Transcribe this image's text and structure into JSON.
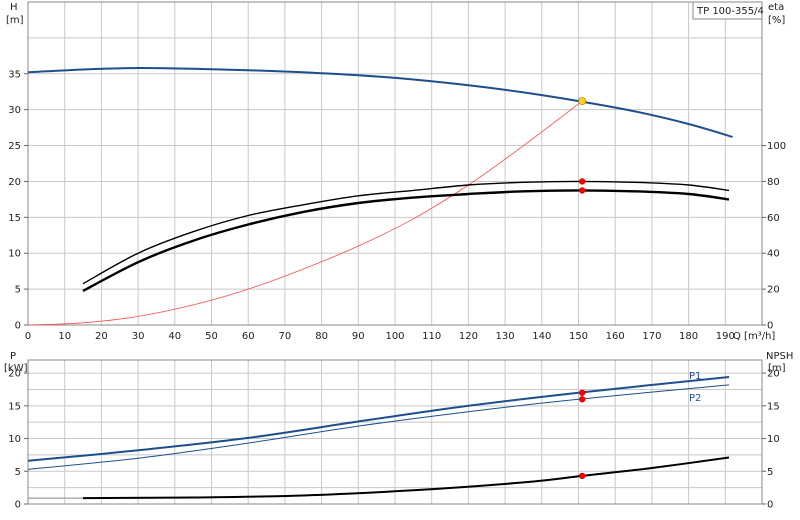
{
  "chart_data": [
    {
      "type": "line",
      "title": "TP 100-355/4",
      "xlabel": "Q [m³/h]",
      "xlim": [
        0,
        200
      ],
      "x_ticks": [
        "0",
        "10",
        "20",
        "30",
        "40",
        "50",
        "60",
        "70",
        "80",
        "90",
        "100",
        "110",
        "120",
        "130",
        "140",
        "150",
        "160",
        "170",
        "180",
        "190"
      ],
      "y_left_label_top": "H",
      "y_left_label_unit": "[m]",
      "y_left_lim": [
        0,
        45
      ],
      "y_left_ticks": [
        "0",
        "5",
        "10",
        "15",
        "20",
        "25",
        "30",
        "35"
      ],
      "y_right_label_top": "eta",
      "y_right_label_unit": "[%]",
      "y_right_lim": [
        0,
        180
      ],
      "y_right_ticks": [
        "0",
        "20",
        "40",
        "60",
        "80",
        "100"
      ],
      "grid": true,
      "colors": {
        "head": "#1f4e8c",
        "system": "#ff4d4d",
        "eta": "#000000",
        "duty": "#ff0000",
        "duty_point": "#ffd21f"
      },
      "series": [
        {
          "axis": "left",
          "x": [
            0,
            15,
            30,
            45,
            60,
            75,
            90,
            105,
            120,
            135,
            150,
            165,
            180,
            192
          ],
          "y": [
            35.2,
            35.6,
            35.8,
            35.7,
            35.5,
            35.2,
            34.8,
            34.2,
            33.4,
            32.4,
            31.2,
            29.8,
            28.0,
            26.2
          ]
        },
        {
          "axis": "left",
          "x": [
            0,
            15,
            30,
            45,
            60,
            75,
            90,
            105,
            120,
            135,
            151
          ],
          "y": [
            0,
            0.3,
            1.2,
            2.8,
            5.0,
            7.8,
            11.0,
            14.8,
            19.5,
            25.0,
            31.2
          ]
        },
        {
          "axis": "right",
          "x": [
            15,
            30,
            45,
            60,
            75,
            90,
            105,
            120,
            135,
            150,
            165,
            180,
            191
          ],
          "y": [
            23,
            40,
            52,
            61,
            67,
            72,
            75,
            78,
            79.5,
            80,
            79.5,
            78,
            75
          ]
        },
        {
          "axis": "right",
          "x": [
            15,
            30,
            45,
            60,
            75,
            90,
            105,
            120,
            135,
            150,
            165,
            180,
            191
          ],
          "y": [
            19,
            35,
            47,
            56,
            63,
            68,
            71,
            73,
            74.5,
            75,
            74.5,
            73,
            70
          ]
        }
      ],
      "points": [
        {
          "x": 151,
          "y": 31.2,
          "axis": "left",
          "color": "#ffd21f"
        },
        {
          "x": 151,
          "y": 80,
          "axis": "right",
          "color": "#ff0000"
        },
        {
          "x": 151,
          "y": 75,
          "axis": "right",
          "color": "#ff0000"
        }
      ]
    },
    {
      "type": "line",
      "y_left_label_top": "P",
      "y_left_label_unit": "[kW]",
      "y_left_lim": [
        0,
        22
      ],
      "y_left_ticks": [
        "0",
        "5",
        "10",
        "15",
        "20"
      ],
      "y_right_label_top": "NPSH",
      "y_right_label_unit": "[m]",
      "y_right_lim": [
        0,
        22
      ],
      "y_right_ticks": [
        "0",
        "5",
        "10",
        "15",
        "20"
      ],
      "xlim": [
        0,
        200
      ],
      "grid": true,
      "colors": {
        "p1": "#1f4e8c",
        "p2": "#1f4e8c",
        "npsh": "#000000",
        "duty": "#ff0000"
      },
      "series": [
        {
          "name": "P1",
          "axis": "left",
          "x": [
            0,
            30,
            60,
            90,
            120,
            150,
            191
          ],
          "y": [
            6.6,
            8.2,
            10.1,
            12.6,
            15.0,
            17.0,
            19.4
          ]
        },
        {
          "name": "P2",
          "axis": "left",
          "x": [
            0,
            30,
            60,
            90,
            120,
            150,
            191
          ],
          "y": [
            5.3,
            7.0,
            9.3,
            11.9,
            14.1,
            16.0,
            18.2
          ]
        },
        {
          "axis": "right",
          "x": [
            15,
            45,
            75,
            105,
            135,
            151,
            170,
            191
          ],
          "y": [
            0.9,
            1.0,
            1.3,
            2.1,
            3.3,
            4.3,
            5.5,
            7.1
          ]
        }
      ],
      "points": [
        {
          "x": 151,
          "y": 17.0,
          "axis": "left",
          "color": "#ff0000"
        },
        {
          "x": 151,
          "y": 16.0,
          "axis": "left",
          "color": "#ff0000"
        },
        {
          "x": 151,
          "y": 4.3,
          "axis": "right",
          "color": "#ff0000"
        }
      ]
    }
  ]
}
